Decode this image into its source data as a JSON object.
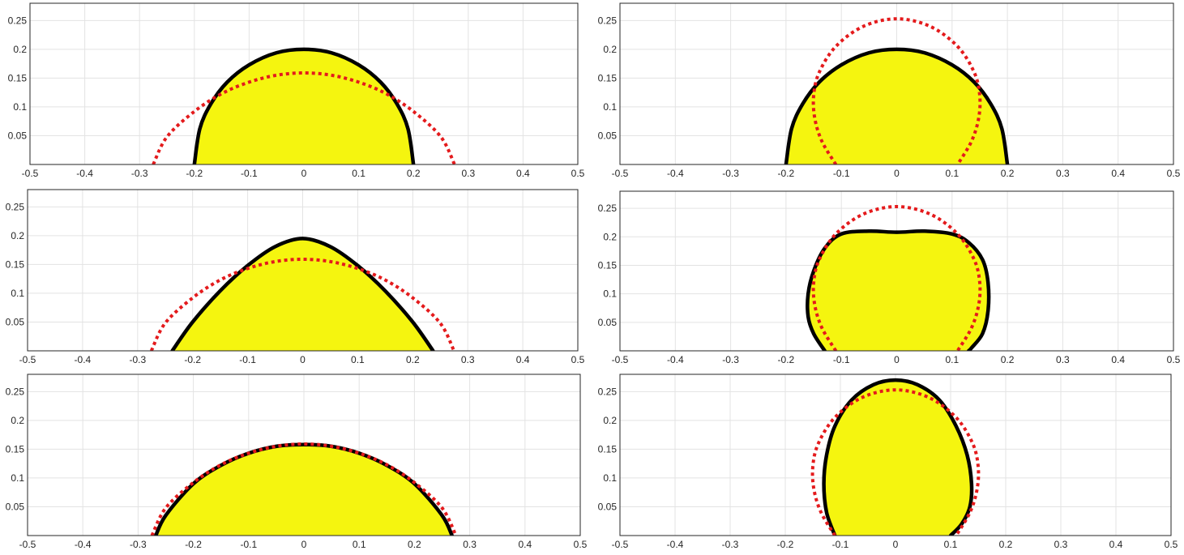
{
  "colors": {
    "fill": "#f5f50f",
    "outline": "#000000",
    "reference": "#e41a1c",
    "grid": "#e3e3e3"
  },
  "chart_data": [
    {
      "type": "area",
      "xlim": [
        -0.5,
        0.5
      ],
      "ylim": [
        0,
        0.28
      ],
      "grid": true,
      "xticks": [
        -0.5,
        -0.4,
        -0.3,
        -0.2,
        -0.1,
        0,
        0.1,
        0.2,
        0.3,
        0.4,
        0.5
      ],
      "xtick_labels": [
        "-0.5",
        "-0.4",
        "-0.3",
        "-0.2",
        "-0.1",
        "0",
        "0.1",
        "0.2",
        "0.3",
        "0.4",
        "0.5"
      ],
      "yticks": [
        0.05,
        0.1,
        0.15,
        0.2,
        0.25
      ],
      "ytick_labels": [
        "0.05",
        "0.1",
        "0.15",
        "0.2",
        "0.25"
      ],
      "series": [
        {
          "style": "solid-black-filled",
          "x": [
            -0.2,
            -0.19,
            -0.17,
            -0.14,
            -0.1,
            -0.05,
            0,
            0.05,
            0.1,
            0.14,
            0.17,
            0.19,
            0.2
          ],
          "y": [
            0,
            0.062,
            0.105,
            0.143,
            0.173,
            0.194,
            0.2,
            0.194,
            0.173,
            0.143,
            0.105,
            0.062,
            0
          ]
        },
        {
          "style": "dotted-red",
          "x": [
            -0.275,
            -0.25,
            -0.2,
            -0.15,
            -0.1,
            -0.05,
            0,
            0.05,
            0.1,
            0.15,
            0.2,
            0.25,
            0.275
          ],
          "y": [
            0,
            0.048,
            0.092,
            0.123,
            0.143,
            0.155,
            0.159,
            0.155,
            0.143,
            0.123,
            0.092,
            0.048,
            0
          ]
        }
      ]
    },
    {
      "type": "area",
      "xlim": [
        -0.5,
        0.5
      ],
      "ylim": [
        0,
        0.28
      ],
      "grid": true,
      "xticks": [
        -0.5,
        -0.4,
        -0.3,
        -0.2,
        -0.1,
        0,
        0.1,
        0.2,
        0.3,
        0.4,
        0.5
      ],
      "xtick_labels": [
        "-0.5",
        "-0.4",
        "-0.3",
        "-0.2",
        "-0.1",
        "0",
        "0.1",
        "0.2",
        "0.3",
        "0.4",
        "0.5"
      ],
      "yticks": [
        0.05,
        0.1,
        0.15,
        0.2,
        0.25
      ],
      "ytick_labels": [
        "0.05",
        "0.1",
        "0.15",
        "0.2",
        "0.25"
      ],
      "series": [
        {
          "style": "solid-black-filled",
          "x": [
            -0.2,
            -0.19,
            -0.17,
            -0.14,
            -0.1,
            -0.05,
            0,
            0.05,
            0.1,
            0.14,
            0.17,
            0.19,
            0.2
          ],
          "y": [
            0,
            0.062,
            0.105,
            0.143,
            0.173,
            0.194,
            0.2,
            0.194,
            0.173,
            0.143,
            0.105,
            0.062,
            0
          ]
        },
        {
          "style": "dotted-red",
          "x": [
            -0.11,
            -0.135,
            -0.148,
            -0.15,
            -0.14,
            -0.11,
            -0.06,
            0,
            0.06,
            0.11,
            0.14,
            0.15,
            0.148,
            0.135,
            0.11
          ],
          "y": [
            0,
            0.04,
            0.08,
            0.12,
            0.16,
            0.205,
            0.24,
            0.253,
            0.24,
            0.205,
            0.16,
            0.12,
            0.08,
            0.04,
            0
          ]
        }
      ]
    },
    {
      "type": "area",
      "xlim": [
        -0.5,
        0.5
      ],
      "ylim": [
        0,
        0.28
      ],
      "grid": true,
      "xticks": [
        -0.5,
        -0.4,
        -0.3,
        -0.2,
        -0.1,
        0,
        0.1,
        0.2,
        0.3,
        0.4,
        0.5
      ],
      "xtick_labels": [
        "-0.5",
        "-0.4",
        "-0.3",
        "-0.2",
        "-0.1",
        "0",
        "0.1",
        "0.2",
        "0.3",
        "0.4",
        "0.5"
      ],
      "yticks": [
        0.05,
        0.1,
        0.15,
        0.2,
        0.25
      ],
      "ytick_labels": [
        "0.05",
        "0.1",
        "0.15",
        "0.2",
        "0.25"
      ],
      "series": [
        {
          "style": "solid-black-filled",
          "x": [
            -0.237,
            -0.2,
            -0.15,
            -0.1,
            -0.05,
            0,
            0.05,
            0.1,
            0.15,
            0.2,
            0.237
          ],
          "y": [
            0,
            0.05,
            0.104,
            0.148,
            0.181,
            0.195,
            0.181,
            0.148,
            0.104,
            0.05,
            0
          ]
        },
        {
          "style": "dotted-red",
          "x": [
            -0.275,
            -0.25,
            -0.2,
            -0.15,
            -0.1,
            -0.05,
            0,
            0.05,
            0.1,
            0.15,
            0.2,
            0.25,
            0.275
          ],
          "y": [
            0,
            0.048,
            0.092,
            0.123,
            0.143,
            0.155,
            0.159,
            0.155,
            0.143,
            0.123,
            0.092,
            0.048,
            0
          ]
        }
      ]
    },
    {
      "type": "area",
      "xlim": [
        -0.5,
        0.5
      ],
      "ylim": [
        0,
        0.28
      ],
      "grid": true,
      "xticks": [
        -0.5,
        -0.4,
        -0.3,
        -0.2,
        -0.1,
        0,
        0.1,
        0.2,
        0.3,
        0.4,
        0.5
      ],
      "xtick_labels": [
        "-0.5",
        "-0.4",
        "-0.3",
        "-0.2",
        "-0.1",
        "0",
        "0.1",
        "0.2",
        "0.3",
        "0.4",
        "0.5"
      ],
      "yticks": [
        0.05,
        0.1,
        0.15,
        0.2,
        0.25
      ],
      "ytick_labels": [
        "0.05",
        "0.1",
        "0.15",
        "0.2",
        "0.25"
      ],
      "series": [
        {
          "style": "solid-black-filled",
          "x": [
            -0.13,
            -0.15,
            -0.16,
            -0.16,
            -0.15,
            -0.13,
            -0.1,
            -0.05,
            0,
            0.05,
            0.1,
            0.13,
            0.155,
            0.165,
            0.165,
            0.155,
            0.135,
            0.13
          ],
          "y": [
            0,
            0.03,
            0.06,
            0.1,
            0.14,
            0.18,
            0.205,
            0.21,
            0.208,
            0.21,
            0.205,
            0.19,
            0.16,
            0.12,
            0.07,
            0.03,
            0.005,
            0
          ]
        },
        {
          "style": "dotted-red",
          "x": [
            -0.11,
            -0.135,
            -0.148,
            -0.15,
            -0.14,
            -0.11,
            -0.06,
            0,
            0.06,
            0.11,
            0.14,
            0.15,
            0.148,
            0.135,
            0.11
          ],
          "y": [
            0,
            0.04,
            0.08,
            0.12,
            0.16,
            0.205,
            0.24,
            0.253,
            0.24,
            0.205,
            0.16,
            0.12,
            0.08,
            0.04,
            0
          ]
        }
      ]
    },
    {
      "type": "area",
      "xlim": [
        -0.5,
        0.5
      ],
      "ylim": [
        0,
        0.28
      ],
      "grid": true,
      "xticks": [
        -0.5,
        -0.4,
        -0.3,
        -0.2,
        -0.1,
        0,
        0.1,
        0.2,
        0.3,
        0.4,
        0.5
      ],
      "xtick_labels": [
        "-0.5",
        "-0.4",
        "-0.3",
        "-0.2",
        "-0.1",
        "0",
        "0.1",
        "0.2",
        "0.3",
        "0.4",
        "0.5"
      ],
      "yticks": [
        0.05,
        0.1,
        0.15,
        0.2,
        0.25
      ],
      "ytick_labels": [
        "0.05",
        "0.1",
        "0.15",
        "0.2",
        "0.25"
      ],
      "series": [
        {
          "style": "solid-black-filled",
          "x": [
            -0.268,
            -0.25,
            -0.2,
            -0.15,
            -0.1,
            -0.05,
            0,
            0.05,
            0.1,
            0.15,
            0.2,
            0.25,
            0.268
          ],
          "y": [
            0,
            0.035,
            0.09,
            0.122,
            0.143,
            0.155,
            0.158,
            0.155,
            0.143,
            0.122,
            0.09,
            0.035,
            0
          ]
        },
        {
          "style": "dotted-red",
          "x": [
            -0.275,
            -0.25,
            -0.2,
            -0.15,
            -0.1,
            -0.05,
            0,
            0.05,
            0.1,
            0.15,
            0.2,
            0.25,
            0.275
          ],
          "y": [
            0,
            0.048,
            0.092,
            0.123,
            0.143,
            0.155,
            0.159,
            0.155,
            0.143,
            0.123,
            0.092,
            0.048,
            0
          ]
        }
      ]
    },
    {
      "type": "area",
      "xlim": [
        -0.5,
        0.5
      ],
      "ylim": [
        0,
        0.28
      ],
      "grid": true,
      "xticks": [
        -0.5,
        -0.4,
        -0.3,
        -0.2,
        -0.1,
        0,
        0.1,
        0.2,
        0.3,
        0.4,
        0.5
      ],
      "xtick_labels": [
        "-0.5",
        "-0.4",
        "-0.3",
        "-0.2",
        "-0.1",
        "0",
        "0.1",
        "0.2",
        "0.3",
        "0.4",
        "0.5"
      ],
      "yticks": [
        0.05,
        0.1,
        0.15,
        0.2,
        0.25
      ],
      "ytick_labels": [
        "0.05",
        "0.1",
        "0.15",
        "0.2",
        "0.25"
      ],
      "series": [
        {
          "style": "solid-black-filled",
          "x": [
            -0.11,
            -0.125,
            -0.13,
            -0.125,
            -0.11,
            -0.08,
            -0.04,
            0,
            0.04,
            0.08,
            0.11,
            0.13,
            0.138,
            0.135,
            0.12,
            0.1
          ],
          "y": [
            0,
            0.04,
            0.09,
            0.14,
            0.19,
            0.235,
            0.262,
            0.27,
            0.262,
            0.235,
            0.19,
            0.14,
            0.09,
            0.05,
            0.02,
            0
          ]
        },
        {
          "style": "dotted-red",
          "x": [
            -0.11,
            -0.135,
            -0.148,
            -0.15,
            -0.14,
            -0.11,
            -0.06,
            0,
            0.06,
            0.11,
            0.14,
            0.15,
            0.148,
            0.135,
            0.11
          ],
          "y": [
            0,
            0.04,
            0.08,
            0.12,
            0.16,
            0.205,
            0.24,
            0.253,
            0.24,
            0.205,
            0.16,
            0.12,
            0.08,
            0.04,
            0
          ]
        }
      ]
    }
  ]
}
